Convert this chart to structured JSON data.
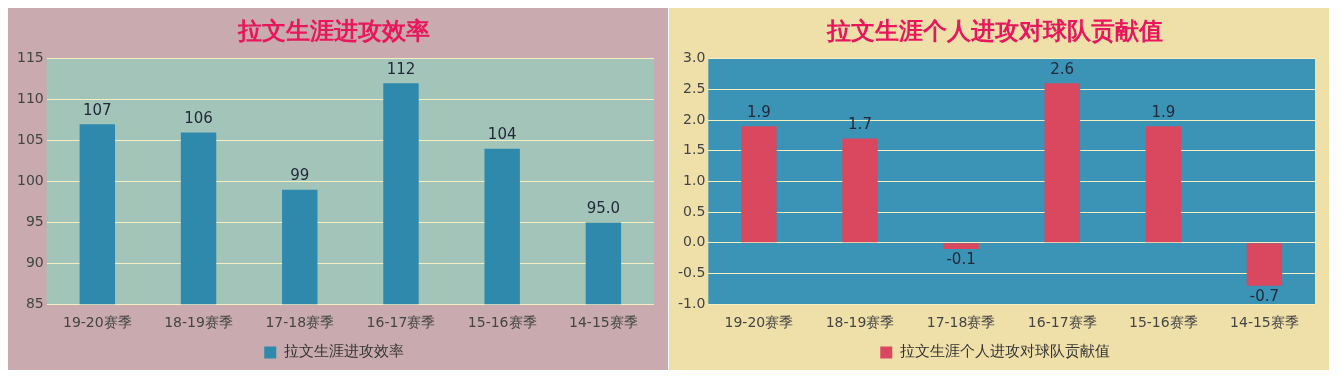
{
  "chart_data": [
    {
      "type": "bar",
      "title": "拉文生涯进攻效率",
      "categories": [
        "19-20赛季",
        "18-19赛季",
        "17-18赛季",
        "16-17赛季",
        "15-16赛季",
        "14-15赛季"
      ],
      "series": [
        {
          "name": "拉文生涯进攻效率",
          "color": "#2e89ad",
          "values": [
            107,
            106,
            99,
            112,
            104,
            95
          ],
          "value_labels": [
            "107",
            "106",
            "99",
            "112",
            "104",
            "95.0"
          ]
        }
      ],
      "ylim": [
        85,
        115
      ],
      "yticks": [
        85,
        90,
        95,
        100,
        105,
        110,
        115
      ],
      "grid": "y",
      "legend": "bottom"
    },
    {
      "type": "bar",
      "title": "拉文生涯个人进攻对球队贡献值",
      "categories": [
        "19-20赛季",
        "18-19赛季",
        "17-18赛季",
        "16-17赛季",
        "15-16赛季",
        "14-15赛季"
      ],
      "series": [
        {
          "name": "拉文生涯个人进攻对球队贡献值",
          "color": "#d9485f",
          "values": [
            1.9,
            1.7,
            -0.1,
            2.6,
            1.9,
            -0.7
          ]
        }
      ],
      "ylim": [
        -1,
        3
      ],
      "yticks": [
        {
          "value": -1,
          "label": "-1.0"
        },
        {
          "value": -0.5,
          "label": "-0.5"
        },
        {
          "value": 0,
          "label": "0.0"
        },
        {
          "value": 0.5,
          "label": "0.5"
        },
        {
          "value": 1,
          "label": "1.0"
        },
        {
          "value": 1.5,
          "label": "1.5"
        },
        {
          "value": 2,
          "label": "2.0"
        },
        {
          "value": 2.5,
          "label": "2.5"
        },
        {
          "value": 3,
          "label": "3.0"
        }
      ],
      "grid": "y",
      "legend": "bottom",
      "data_labels": true
    }
  ]
}
